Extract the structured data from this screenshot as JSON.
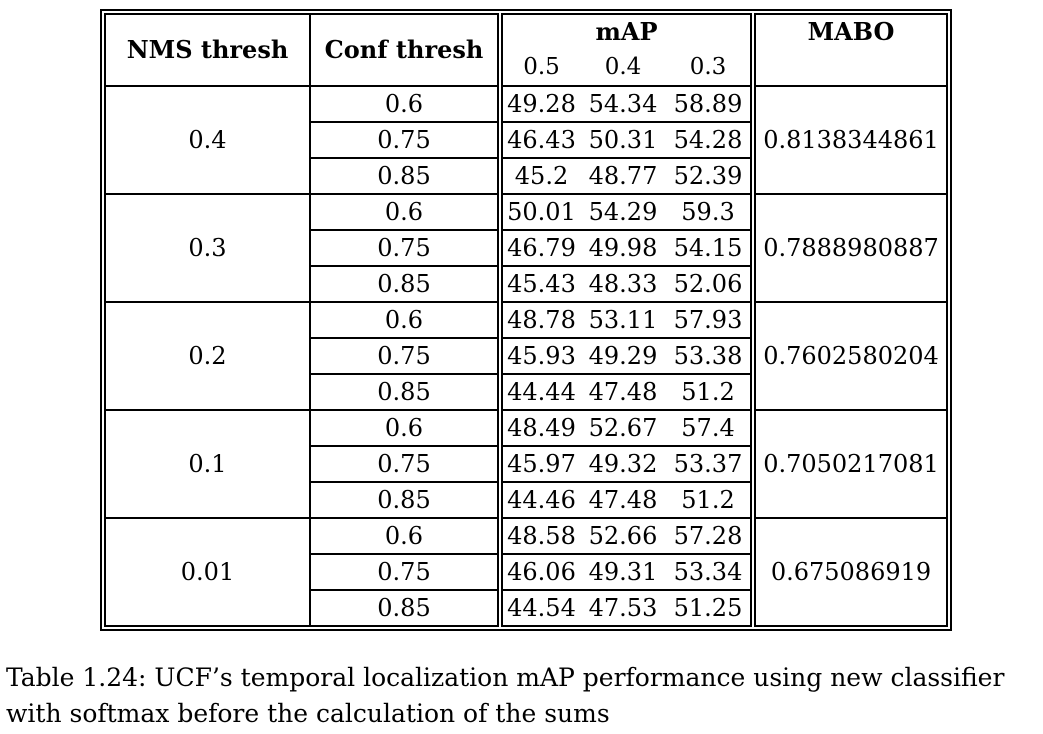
{
  "table": {
    "headers": {
      "nms": "NMS thresh",
      "conf": "Conf thresh",
      "map": "mAP",
      "mabo": "MABO",
      "map_sub": [
        "0.5",
        "0.4",
        "0.3"
      ]
    },
    "groups": [
      {
        "nms": "0.4",
        "mabo": "0.8138344861",
        "rows": [
          {
            "conf": "0.6",
            "m": [
              "49.28",
              "54.34",
              "58.89"
            ]
          },
          {
            "conf": "0.75",
            "m": [
              "46.43",
              "50.31",
              "54.28"
            ]
          },
          {
            "conf": "0.85",
            "m": [
              "45.2",
              "48.77",
              "52.39"
            ]
          }
        ]
      },
      {
        "nms": "0.3",
        "mabo": "0.7888980887",
        "rows": [
          {
            "conf": "0.6",
            "m": [
              "50.01",
              "54.29",
              "59.3"
            ]
          },
          {
            "conf": "0.75",
            "m": [
              "46.79",
              "49.98",
              "54.15"
            ]
          },
          {
            "conf": "0.85",
            "m": [
              "45.43",
              "48.33",
              "52.06"
            ]
          }
        ]
      },
      {
        "nms": "0.2",
        "mabo": "0.7602580204",
        "rows": [
          {
            "conf": "0.6",
            "m": [
              "48.78",
              "53.11",
              "57.93"
            ]
          },
          {
            "conf": "0.75",
            "m": [
              "45.93",
              "49.29",
              "53.38"
            ]
          },
          {
            "conf": "0.85",
            "m": [
              "44.44",
              "47.48",
              "51.2"
            ]
          }
        ]
      },
      {
        "nms": "0.1",
        "mabo": "0.7050217081",
        "rows": [
          {
            "conf": "0.6",
            "m": [
              "48.49",
              "52.67",
              "57.4"
            ]
          },
          {
            "conf": "0.75",
            "m": [
              "45.97",
              "49.32",
              "53.37"
            ]
          },
          {
            "conf": "0.85",
            "m": [
              "44.46",
              "47.48",
              "51.2"
            ]
          }
        ]
      },
      {
        "nms": "0.01",
        "mabo": "0.675086919",
        "rows": [
          {
            "conf": "0.6",
            "m": [
              "48.58",
              "52.66",
              "57.28"
            ]
          },
          {
            "conf": "0.75",
            "m": [
              "46.06",
              "49.31",
              "53.34"
            ]
          },
          {
            "conf": "0.85",
            "m": [
              "44.54",
              "47.53",
              "51.25"
            ]
          }
        ]
      }
    ]
  },
  "caption": "Table 1.24: UCF’s temporal localization mAP performance using new classifier with softmax before the calculation of the sums"
}
